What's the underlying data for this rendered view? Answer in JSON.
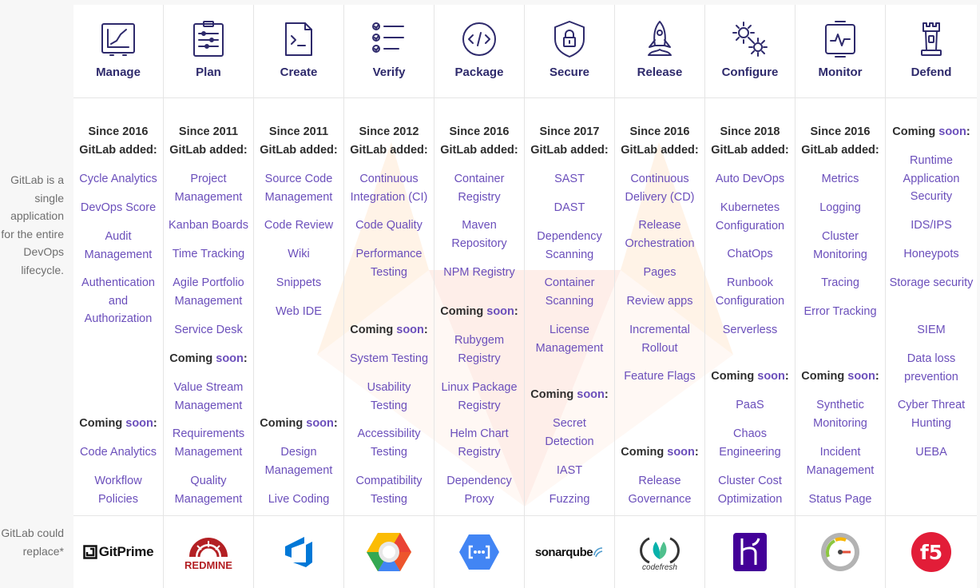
{
  "side": {
    "top_text": "GitLab is a single application for the entire DevOps lifecycle.",
    "bottom_text": "GitLab could replace*"
  },
  "soon_word": "soon",
  "colors": {
    "accent": "#6b4fbb",
    "title": "#2e2a6c",
    "tanuki": "#fc6d26"
  },
  "stages": [
    {
      "title": "Manage",
      "icon": "manage-chart-icon",
      "since_line1": "Since 2016",
      "since_line2": "GitLab added:",
      "added": [
        "Cycle Analytics",
        "DevOps Score",
        "Audit Management",
        "Authentication and Authorization"
      ],
      "coming_prefix": "Coming ",
      "coming": [
        "Code Analytics",
        "Workflow Policies"
      ],
      "logo": "gitprime-logo",
      "logo_text": "GitPrime"
    },
    {
      "title": "Plan",
      "icon": "plan-board-icon",
      "since_line1": "Since 2011",
      "since_line2": "GitLab added:",
      "added": [
        "Project Management",
        "Kanban Boards",
        "Time Tracking",
        "Agile Portfolio Management",
        "Service Desk"
      ],
      "coming_prefix": "Coming ",
      "coming": [
        "Value Stream Management",
        "Requirements Management",
        "Quality Management"
      ],
      "logo": "redmine-logo",
      "logo_text": "REDMINE"
    },
    {
      "title": "Create",
      "icon": "create-terminal-icon",
      "since_line1": "Since 2011",
      "since_line2": "GitLab added:",
      "added": [
        "Source Code Management",
        "Code Review",
        "Wiki",
        "Snippets",
        "Web IDE"
      ],
      "coming_prefix": "Coming ",
      "coming": [
        "Design Management",
        "Live Coding"
      ],
      "logo": "azure-devops-logo",
      "logo_text": ""
    },
    {
      "title": "Verify",
      "icon": "verify-checklist-icon",
      "since_line1": "Since 2012",
      "since_line2": "GitLab added:",
      "added": [
        "Continuous Integration (CI)",
        "Code Quality",
        "Performance Testing"
      ],
      "coming_prefix": "Coming ",
      "coming": [
        "System Testing",
        "Usability Testing",
        "Accessibility Testing",
        "Compatibility Testing"
      ],
      "logo": "google-cloud-build-logo",
      "logo_text": ""
    },
    {
      "title": "Package",
      "icon": "package-code-icon",
      "since_line1": "Since 2016",
      "since_line2": "GitLab added:",
      "added": [
        "Container Registry",
        "Maven Repository",
        "NPM Registry"
      ],
      "coming_prefix": "Coming ",
      "coming": [
        "Rubygem Registry",
        "Linux Package Registry",
        "Helm Chart Registry",
        "Dependency Proxy"
      ],
      "logo": "google-artifact-logo",
      "logo_text": ""
    },
    {
      "title": "Secure",
      "icon": "secure-shield-icon",
      "since_line1": "Since 2017",
      "since_line2": "GitLab added:",
      "added": [
        "SAST",
        "DAST",
        "Dependency Scanning",
        "Container Scanning",
        "License Management"
      ],
      "coming_prefix": "Coming ",
      "coming": [
        "Secret Detection",
        "IAST",
        "Fuzzing"
      ],
      "logo": "sonarqube-logo",
      "logo_text": "sonarqube"
    },
    {
      "title": "Release",
      "icon": "release-rocket-icon",
      "since_line1": "Since 2016",
      "since_line2": "GitLab added:",
      "added": [
        "Continuous Delivery (CD)",
        "Release Orchestration",
        "Pages",
        "Review apps",
        "Incremental Rollout",
        "Feature Flags"
      ],
      "coming_prefix": "Coming ",
      "coming": [
        "Release Governance"
      ],
      "logo": "codefresh-logo",
      "logo_text": "codefresh"
    },
    {
      "title": "Configure",
      "icon": "configure-gears-icon",
      "since_line1": "Since 2018",
      "since_line2": "GitLab added:",
      "added": [
        "Auto DevOps",
        "Kubernetes Configuration",
        "ChatOps",
        "Runbook Configuration",
        "Serverless"
      ],
      "coming_prefix": "Coming ",
      "coming": [
        "PaaS",
        "Chaos Engineering",
        "Cluster Cost Optimization"
      ],
      "logo": "heroku-logo",
      "logo_text": ""
    },
    {
      "title": "Monitor",
      "icon": "monitor-pulse-icon",
      "since_line1": "Since 2016",
      "since_line2": "GitLab added:",
      "added": [
        "Metrics",
        "Logging",
        "Cluster Monitoring",
        "Tracing",
        "Error Tracking"
      ],
      "coming_prefix": "Coming ",
      "coming": [
        "Synthetic Monitoring",
        "Incident Management",
        "Status Page"
      ],
      "logo": "speedometer-logo",
      "logo_text": ""
    },
    {
      "title": "Defend",
      "icon": "defend-tower-icon",
      "since_line1": "",
      "since_line2": "",
      "added": [],
      "coming_prefix": "Coming ",
      "coming": [
        "Runtime Application Security",
        "IDS/IPS",
        "Honeypots",
        "Storage security",
        "SIEM",
        "Data loss prevention",
        "Cyber Threat Hunting",
        "UEBA"
      ],
      "logo": "f5-logo",
      "logo_text": "f5"
    }
  ]
}
